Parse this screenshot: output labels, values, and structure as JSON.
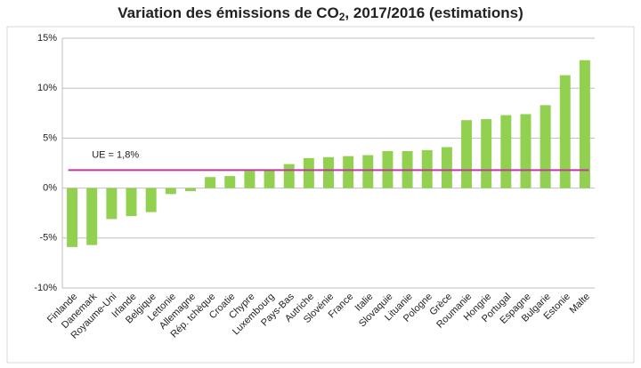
{
  "chart_data": {
    "type": "bar",
    "title": [
      "Variation des émissions de CO",
      "2",
      ", 2017/2016 (estimations)"
    ],
    "categories": [
      "Finlande",
      "Danemark",
      "Royaume-Uni",
      "Irlande",
      "Belgique",
      "Lettonie",
      "Allemagne",
      "Rép. tchèque",
      "Croatie",
      "Chypre",
      "Luxembourg",
      "Pays-Bas",
      "Autriche",
      "Slovénie",
      "France",
      "Italie",
      "Slovaquie",
      "Lituanie",
      "Pologne",
      "Grèce",
      "Roumanie",
      "Hongrie",
      "Portugal",
      "Espagne",
      "Bulgarie",
      "Estonie",
      "Malte"
    ],
    "values": [
      -5.9,
      -5.7,
      -3.1,
      -2.8,
      -2.4,
      -0.6,
      -0.3,
      1.1,
      1.2,
      1.7,
      1.8,
      2.4,
      3.0,
      3.1,
      3.2,
      3.3,
      3.7,
      3.7,
      3.8,
      4.1,
      6.8,
      6.9,
      7.3,
      7.4,
      8.3,
      11.3,
      12.8
    ],
    "color": "#92d050",
    "ylim": [
      -10,
      15
    ],
    "yticks": [
      {
        "value": -10,
        "label": "-10%"
      },
      {
        "value": -5,
        "label": "-5%"
      },
      {
        "value": 0,
        "label": "0%"
      },
      {
        "value": 5,
        "label": "5%"
      },
      {
        "value": 10,
        "label": "10%"
      },
      {
        "value": 15,
        "label": "15%"
      }
    ],
    "grid": true,
    "reference_line": {
      "label": "UE = 1,8%",
      "value": 1.8,
      "color": "#c0399f"
    }
  }
}
